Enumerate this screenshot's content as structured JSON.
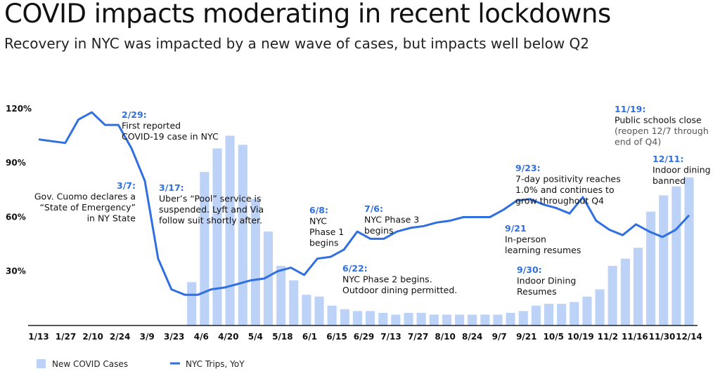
{
  "header": {
    "title": "COVID impacts moderating in recent lockdowns",
    "subtitle": "Recovery in NYC was impacted by a new wave of cases, but impacts well below Q2"
  },
  "colors": {
    "line": "#2f6fe0",
    "bars": "#bcd2f7",
    "date": "#2f6fe0",
    "note": "#111111",
    "muted": "#555555"
  },
  "chart_data": {
    "type": "bar+line",
    "x_labels": [
      "1/13",
      "1/27",
      "2/10",
      "2/24",
      "3/9",
      "3/23",
      "4/6",
      "4/20",
      "5/4",
      "5/18",
      "6/1",
      "6/15",
      "6/29",
      "7/13",
      "7/27",
      "8/10",
      "8/24",
      "9/7",
      "9/21",
      "10/5",
      "10/19",
      "11/2",
      "11/16",
      "11/30",
      "12/14"
    ],
    "yticks": [
      30,
      60,
      90,
      120
    ],
    "ytick_labels": [
      "30%",
      "60%",
      "90%",
      "120%"
    ],
    "ylim": [
      0,
      132
    ],
    "series": [
      {
        "name": "New COVID Cases",
        "type": "bar",
        "values": [
          0,
          0,
          0,
          0,
          0,
          0,
          0,
          0,
          0,
          0,
          0,
          0,
          24,
          85,
          98,
          105,
          100,
          70,
          52,
          33,
          25,
          17,
          16,
          11,
          9,
          8,
          8,
          7,
          6,
          7,
          7,
          6,
          6,
          6,
          6,
          6,
          6,
          7,
          8,
          11,
          12,
          12,
          13,
          16,
          20,
          33,
          37,
          43,
          63,
          72,
          77,
          82
        ]
      },
      {
        "name": "NYC Trips, YoY",
        "type": "line",
        "values": [
          103,
          102,
          101,
          114,
          118,
          111,
          111,
          98,
          80,
          37,
          20,
          17,
          17,
          20,
          21,
          23,
          25,
          26,
          30,
          32,
          28,
          37,
          38,
          42,
          52,
          48,
          48,
          52,
          54,
          55,
          57,
          58,
          60,
          60,
          60,
          64,
          69,
          70,
          67,
          65,
          62,
          71,
          58,
          53,
          50,
          56,
          52,
          49,
          53,
          61
        ]
      }
    ],
    "legend": [
      "New COVID Cases",
      "NYC Trips, YoY"
    ],
    "annotations": [
      {
        "date": "2/29:",
        "lines": [
          "First reported",
          "COVID-19 case in NYC"
        ]
      },
      {
        "date": "3/7:",
        "lines": [
          "Gov. Cuomo declares a",
          "“State of Emergency”",
          "in NY State"
        ]
      },
      {
        "date": "3/17:",
        "lines": [
          "Uber’s “Pool” service is",
          "suspended. Lyft and Via",
          "follow suit shortly after."
        ]
      },
      {
        "date": "6/8:",
        "lines": [
          "NYC",
          "Phase 1",
          "begins"
        ]
      },
      {
        "date": "7/6:",
        "lines": [
          "NYC Phase 3",
          "begins"
        ]
      },
      {
        "date": "6/22:",
        "lines": [
          "NYC Phase 2 begins.",
          "Outdoor dining permitted."
        ]
      },
      {
        "date": "9/23:",
        "lines": [
          "7-day positivity reaches",
          "1.0% and continues to",
          "grow throughout Q4"
        ]
      },
      {
        "date": "9/21",
        "lines": [
          "In-person",
          "learning resumes"
        ]
      },
      {
        "date": "9/30:",
        "lines": [
          "Indoor Dining",
          "Resumes"
        ]
      },
      {
        "date": "11/19:",
        "lines": [
          "Public schools close"
        ],
        "muted": [
          "(reopen 12/7 through",
          "end of Q4)"
        ]
      },
      {
        "date": "12/11:",
        "lines": [
          "Indoor dining",
          "banned"
        ]
      }
    ]
  }
}
